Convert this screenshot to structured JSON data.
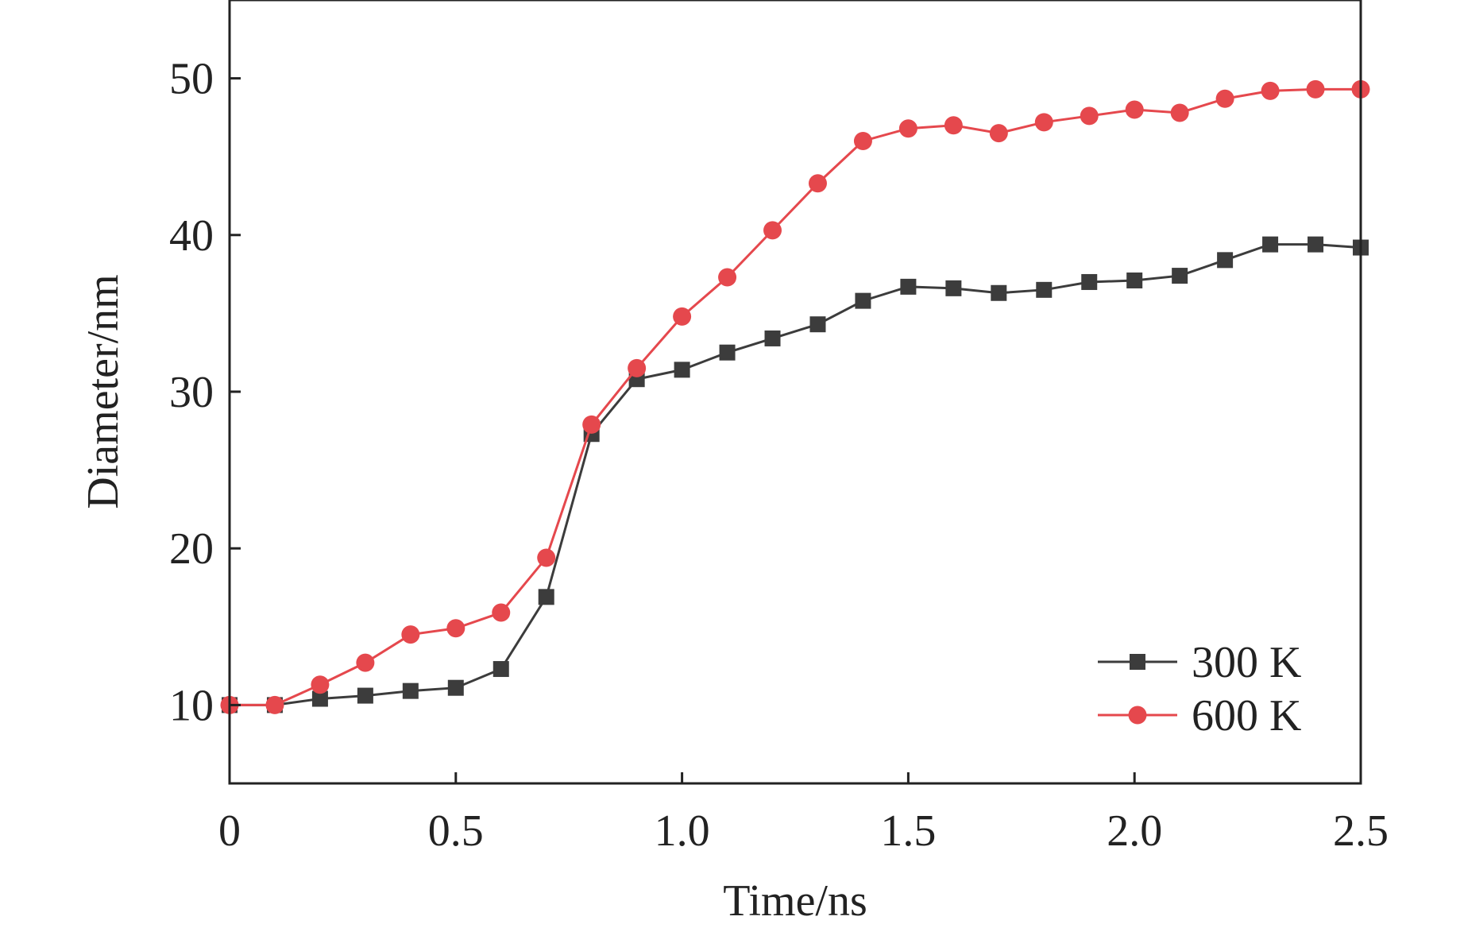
{
  "chart_data": {
    "type": "line",
    "title": "",
    "xlabel": "Time/ns",
    "ylabel": "Diameter/nm",
    "xlim": [
      0,
      2.5
    ],
    "ylim": [
      5,
      55
    ],
    "xticks": [
      0,
      0.5,
      1.0,
      1.5,
      2.0,
      2.5
    ],
    "xtick_labels": [
      "0",
      "0.5",
      "1.0",
      "1.5",
      "2.0",
      "2.5"
    ],
    "yticks": [
      10,
      20,
      30,
      40,
      50
    ],
    "ytick_labels": [
      "10",
      "20",
      "30",
      "40",
      "50"
    ],
    "grid": false,
    "legend_position": "bottom-right",
    "x": [
      0,
      0.1,
      0.2,
      0.3,
      0.4,
      0.5,
      0.6,
      0.7,
      0.8,
      0.9,
      1.0,
      1.1,
      1.2,
      1.3,
      1.4,
      1.5,
      1.6,
      1.7,
      1.8,
      1.9,
      2.0,
      2.1,
      2.2,
      2.3,
      2.4,
      2.5
    ],
    "series": [
      {
        "name": "300 K",
        "color": "#3c3c3c",
        "marker": "square",
        "values": [
          10,
          10,
          10.4,
          10.6,
          10.9,
          11.1,
          12.3,
          16.9,
          27.3,
          30.8,
          31.4,
          32.5,
          33.4,
          34.3,
          35.8,
          36.7,
          36.6,
          36.3,
          36.5,
          37.0,
          37.1,
          37.4,
          38.4,
          39.4,
          39.4,
          39.2
        ]
      },
      {
        "name": "600 K",
        "color": "#e5484d",
        "marker": "circle",
        "values": [
          10,
          10,
          11.3,
          12.7,
          14.5,
          14.9,
          15.9,
          19.4,
          27.9,
          31.5,
          34.8,
          37.3,
          40.3,
          43.3,
          46.0,
          46.8,
          47.0,
          46.5,
          47.2,
          47.6,
          48.0,
          47.8,
          48.7,
          49.2,
          49.3,
          49.3
        ]
      }
    ]
  }
}
